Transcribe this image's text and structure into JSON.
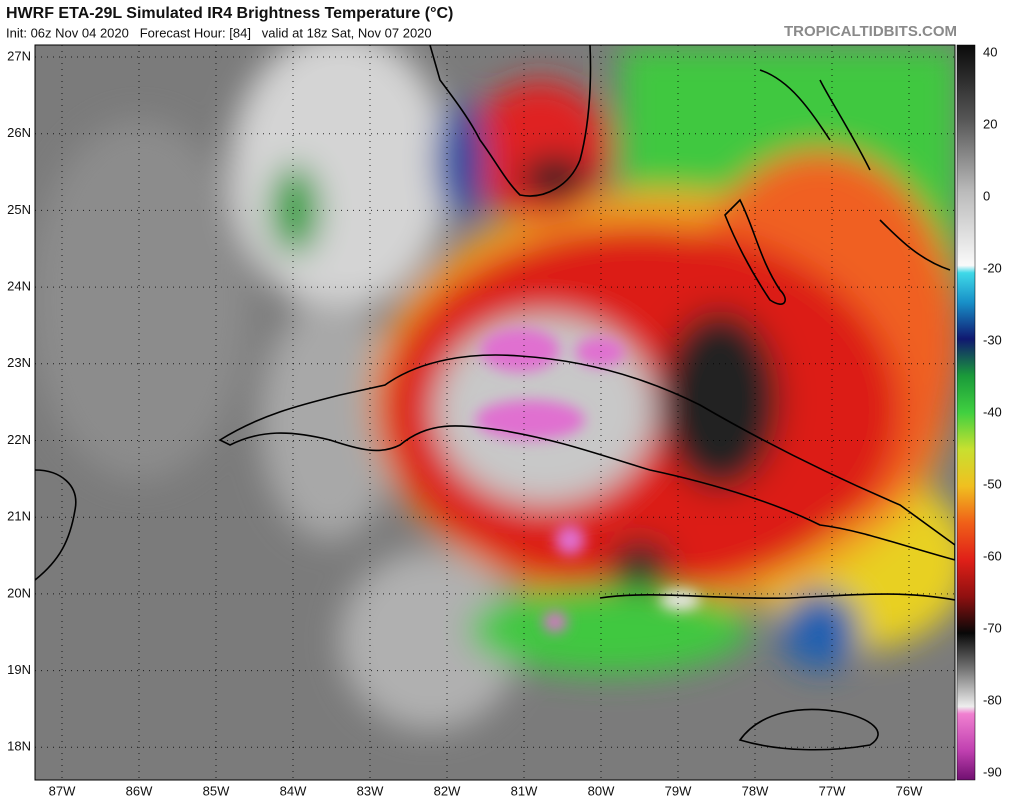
{
  "header": {
    "title": "HWRF ETA-29L Simulated IR4 Brightness Temperature (°C)",
    "subtitle": "Init: 06z Nov 04 2020   Forecast Hour: [84]   valid at 18z Sat, Nov 07 2020",
    "credit": "TROPICALTIDBITS.COM"
  },
  "map": {
    "lat_labels": [
      "27N",
      "26N",
      "25N",
      "24N",
      "23N",
      "22N",
      "21N",
      "20N",
      "19N",
      "18N"
    ],
    "lon_labels": [
      "87W",
      "86W",
      "85W",
      "84W",
      "83W",
      "82W",
      "81W",
      "80W",
      "79W",
      "78W",
      "77W",
      "76W"
    ]
  },
  "colorbar": {
    "ticks": [
      40,
      20,
      0,
      -20,
      -30,
      -40,
      -50,
      -60,
      -70,
      -80,
      -90
    ]
  }
}
